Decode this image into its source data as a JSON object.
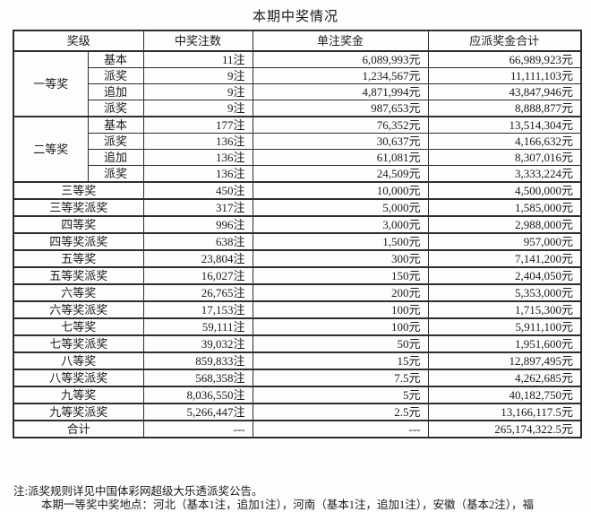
{
  "colors": {
    "background": "#fdfdfd",
    "text": "#1a1a1a",
    "table_border": "#2e2e2e"
  },
  "chart_data": {
    "type": "table",
    "title": "本期中奖情况",
    "columns": [
      "奖级",
      "中奖注数",
      "单注奖金",
      "应派奖金合计"
    ],
    "groups": [
      {
        "level": "一等奖",
        "rows": [
          [
            "基本",
            "11注",
            "6,089,993元",
            "66,989,923元"
          ],
          [
            "派奖",
            "9注",
            "1,234,567元",
            "11,111,103元"
          ],
          [
            "追加",
            "9注",
            "4,871,994元",
            "43,847,946元"
          ],
          [
            "派奖",
            "9注",
            "987,653元",
            "8,888,877元"
          ]
        ]
      },
      {
        "level": "二等奖",
        "rows": [
          [
            "基本",
            "177注",
            "76,352元",
            "13,514,304元"
          ],
          [
            "派奖",
            "136注",
            "30,637元",
            "4,166,632元"
          ],
          [
            "追加",
            "136注",
            "61,081元",
            "8,307,016元"
          ],
          [
            "派奖",
            "136注",
            "24,509元",
            "3,333,224元"
          ]
        ]
      }
    ],
    "rows": [
      [
        "三等奖",
        "450注",
        "10,000元",
        "4,500,000元"
      ],
      [
        "三等奖派奖",
        "317注",
        "5,000元",
        "1,585,000元"
      ],
      [
        "四等奖",
        "996注",
        "3,000元",
        "2,988,000元"
      ],
      [
        "四等奖派奖",
        "638注",
        "1,500元",
        "957,000元"
      ],
      [
        "五等奖",
        "23,804注",
        "300元",
        "7,141,200元"
      ],
      [
        "五等奖派奖",
        "16,027注",
        "150元",
        "2,404,050元"
      ],
      [
        "六等奖",
        "26,765注",
        "200元",
        "5,353,000元"
      ],
      [
        "六等奖派奖",
        "17,153注",
        "100元",
        "1,715,300元"
      ],
      [
        "七等奖",
        "59,111注",
        "100元",
        "5,911,100元"
      ],
      [
        "七等奖派奖",
        "39,032注",
        "50元",
        "1,951,600元"
      ],
      [
        "八等奖",
        "859,833注",
        "15元",
        "12,897,495元"
      ],
      [
        "八等奖派奖",
        "568,358注",
        "7.5元",
        "4,262,685元"
      ],
      [
        "九等奖",
        "8,036,550注",
        "5元",
        "40,182,750元"
      ],
      [
        "九等奖派奖",
        "5,266,447注",
        "2.5元",
        "13,166,117.5元"
      ]
    ],
    "total_row": [
      "合计",
      "---",
      "---",
      "265,174,322.5元"
    ]
  },
  "notes": {
    "rule_note": "注:派奖规则详见中国体彩网超级大乐透派奖公告。",
    "clipped_line": "本期一等奖中奖地点：河北（基本1注，追加1注），河南（基本1注，追加1注），安徽（基本2注），福"
  }
}
